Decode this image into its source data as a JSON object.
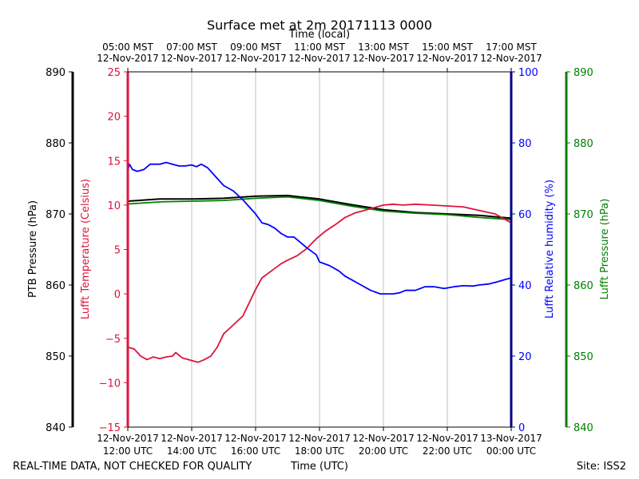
{
  "chart_data": {
    "type": "line",
    "title": "Surface met at 2m 20171113 0000",
    "top_axis": {
      "label": "Time (local)",
      "ticks": [
        {
          "h": 12,
          "line1": "05:00 MST",
          "line2": "12-Nov-2017"
        },
        {
          "h": 14,
          "line1": "07:00 MST",
          "line2": "12-Nov-2017"
        },
        {
          "h": 16,
          "line1": "09:00 MST",
          "line2": "12-Nov-2017"
        },
        {
          "h": 18,
          "line1": "11:00 MST",
          "line2": "12-Nov-2017"
        },
        {
          "h": 20,
          "line1": "13:00 MST",
          "line2": "12-Nov-2017"
        },
        {
          "h": 22,
          "line1": "15:00 MST",
          "line2": "12-Nov-2017"
        },
        {
          "h": 24,
          "line1": "17:00 MST",
          "line2": "12-Nov-2017"
        }
      ]
    },
    "bottom_axis": {
      "label": "Time (UTC)",
      "range": [
        12,
        24
      ],
      "ticks": [
        {
          "h": 12,
          "line1": "12-Nov-2017",
          "line2": "12:00 UTC"
        },
        {
          "h": 14,
          "line1": "12-Nov-2017",
          "line2": "14:00 UTC"
        },
        {
          "h": 16,
          "line1": "12-Nov-2017",
          "line2": "16:00 UTC"
        },
        {
          "h": 18,
          "line1": "12-Nov-2017",
          "line2": "18:00 UTC"
        },
        {
          "h": 20,
          "line1": "12-Nov-2017",
          "line2": "20:00 UTC"
        },
        {
          "h": 22,
          "line1": "12-Nov-2017",
          "line2": "22:00 UTC"
        },
        {
          "h": 24,
          "line1": "13-Nov-2017",
          "line2": "00:00 UTC"
        }
      ]
    },
    "axes": {
      "ptb_pressure": {
        "label": "PTB Pressure (hPa)",
        "range": [
          840,
          890
        ],
        "ticks": [
          "840",
          "850",
          "860",
          "870",
          "880",
          "890"
        ],
        "color": "#000000"
      },
      "temperature": {
        "label": "Lufft Temperature (Celsius)",
        "range": [
          -15,
          25
        ],
        "ticks": [
          "−15",
          "−10",
          "−5",
          "0",
          "5",
          "10",
          "15",
          "20",
          "25"
        ],
        "color": "#dc143c"
      },
      "humidity": {
        "label": "Lufft Relative humidity (%)",
        "range": [
          0,
          100
        ],
        "ticks": [
          "0",
          "20",
          "40",
          "60",
          "80",
          "100"
        ],
        "color": "#0000ff"
      },
      "lufft_pressure": {
        "label": "Lufft Pressure (hPa)",
        "range": [
          840,
          890
        ],
        "ticks": [
          "840",
          "850",
          "860",
          "870",
          "880",
          "890"
        ],
        "color": "#008000"
      }
    },
    "series": [
      {
        "name": "PTB Pressure",
        "axis": "ptb_pressure",
        "color": "#000000",
        "points": [
          [
            12,
            871.8
          ],
          [
            13,
            872.1
          ],
          [
            14,
            872.1
          ],
          [
            15,
            872.2
          ],
          [
            16,
            872.5
          ],
          [
            17,
            872.6
          ],
          [
            18,
            872.1
          ],
          [
            19,
            871.3
          ],
          [
            20,
            870.6
          ],
          [
            21,
            870.2
          ],
          [
            22,
            870.0
          ],
          [
            23,
            869.8
          ],
          [
            24,
            869.4
          ]
        ]
      },
      {
        "name": "Lufft Pressure",
        "axis": "lufft_pressure",
        "color": "#008000",
        "points": [
          [
            12,
            871.4
          ],
          [
            13,
            871.7
          ],
          [
            14,
            871.8
          ],
          [
            15,
            871.9
          ],
          [
            16,
            872.2
          ],
          [
            17,
            872.4
          ],
          [
            18,
            871.9
          ],
          [
            19,
            871.1
          ],
          [
            20,
            870.4
          ],
          [
            21,
            870.1
          ],
          [
            22,
            869.9
          ],
          [
            23,
            869.5
          ],
          [
            24,
            869.2
          ]
        ]
      },
      {
        "name": "Lufft Temperature",
        "axis": "temperature",
        "color": "#dc143c",
        "points": [
          [
            12,
            -6
          ],
          [
            12.2,
            -6.2
          ],
          [
            12.4,
            -7
          ],
          [
            12.6,
            -7.4
          ],
          [
            12.8,
            -7.1
          ],
          [
            13.0,
            -7.3
          ],
          [
            13.2,
            -7.1
          ],
          [
            13.4,
            -7
          ],
          [
            13.5,
            -6.6
          ],
          [
            13.7,
            -7.2
          ],
          [
            14.0,
            -7.5
          ],
          [
            14.2,
            -7.7
          ],
          [
            14.4,
            -7.4
          ],
          [
            14.6,
            -7.0
          ],
          [
            14.8,
            -6.0
          ],
          [
            15.0,
            -4.5
          ],
          [
            15.3,
            -3.5
          ],
          [
            15.6,
            -2.5
          ],
          [
            15.8,
            -1.0
          ],
          [
            16.0,
            0.5
          ],
          [
            16.2,
            1.8
          ],
          [
            16.5,
            2.6
          ],
          [
            16.8,
            3.4
          ],
          [
            17.0,
            3.8
          ],
          [
            17.3,
            4.3
          ],
          [
            17.6,
            5.1
          ],
          [
            17.9,
            6.2
          ],
          [
            18.2,
            7.1
          ],
          [
            18.5,
            7.8
          ],
          [
            18.8,
            8.6
          ],
          [
            19.1,
            9.1
          ],
          [
            19.4,
            9.4
          ],
          [
            19.7,
            9.7
          ],
          [
            20.0,
            10.0
          ],
          [
            20.3,
            10.1
          ],
          [
            20.6,
            10.0
          ],
          [
            21.0,
            10.1
          ],
          [
            21.5,
            10.0
          ],
          [
            22.0,
            9.9
          ],
          [
            22.5,
            9.8
          ],
          [
            23.0,
            9.4
          ],
          [
            23.5,
            9.0
          ],
          [
            24.0,
            8.0
          ]
        ]
      },
      {
        "name": "Lufft Relative humidity",
        "axis": "humidity",
        "color": "#0000ff",
        "points": [
          [
            12,
            72
          ],
          [
            12.05,
            74
          ],
          [
            12.15,
            72.5
          ],
          [
            12.3,
            72
          ],
          [
            12.5,
            72.5
          ],
          [
            12.7,
            74
          ],
          [
            13.0,
            74
          ],
          [
            13.2,
            74.5
          ],
          [
            13.4,
            74
          ],
          [
            13.6,
            73.5
          ],
          [
            13.8,
            73.5
          ],
          [
            14.0,
            73.8
          ],
          [
            14.15,
            73.3
          ],
          [
            14.3,
            74
          ],
          [
            14.5,
            73
          ],
          [
            14.7,
            71
          ],
          [
            15.0,
            68
          ],
          [
            15.3,
            66.5
          ],
          [
            15.6,
            64
          ],
          [
            16.0,
            60
          ],
          [
            16.2,
            57.5
          ],
          [
            16.4,
            57
          ],
          [
            16.6,
            56
          ],
          [
            16.8,
            54.5
          ],
          [
            17.0,
            53.5
          ],
          [
            17.2,
            53.5
          ],
          [
            17.4,
            52
          ],
          [
            17.6,
            50.5
          ],
          [
            17.9,
            48.5
          ],
          [
            18.0,
            46.5
          ],
          [
            18.3,
            45.5
          ],
          [
            18.6,
            44
          ],
          [
            18.8,
            42.5
          ],
          [
            19.0,
            41.5
          ],
          [
            19.3,
            40
          ],
          [
            19.6,
            38.5
          ],
          [
            19.9,
            37.5
          ],
          [
            20.1,
            37.5
          ],
          [
            20.3,
            37.5
          ],
          [
            20.5,
            37.8
          ],
          [
            20.7,
            38.5
          ],
          [
            21.0,
            38.5
          ],
          [
            21.3,
            39.5
          ],
          [
            21.6,
            39.5
          ],
          [
            21.9,
            39.0
          ],
          [
            22.2,
            39.5
          ],
          [
            22.5,
            39.8
          ],
          [
            22.8,
            39.7
          ],
          [
            23.0,
            40
          ],
          [
            23.3,
            40.3
          ],
          [
            23.6,
            41
          ],
          [
            23.8,
            41.5
          ],
          [
            24.0,
            42
          ]
        ]
      }
    ],
    "grid": true,
    "footer_left": "REAL-TIME DATA, NOT CHECKED FOR QUALITY",
    "footer_center": "Time (UTC)",
    "footer_right": "Site: ISS2"
  }
}
